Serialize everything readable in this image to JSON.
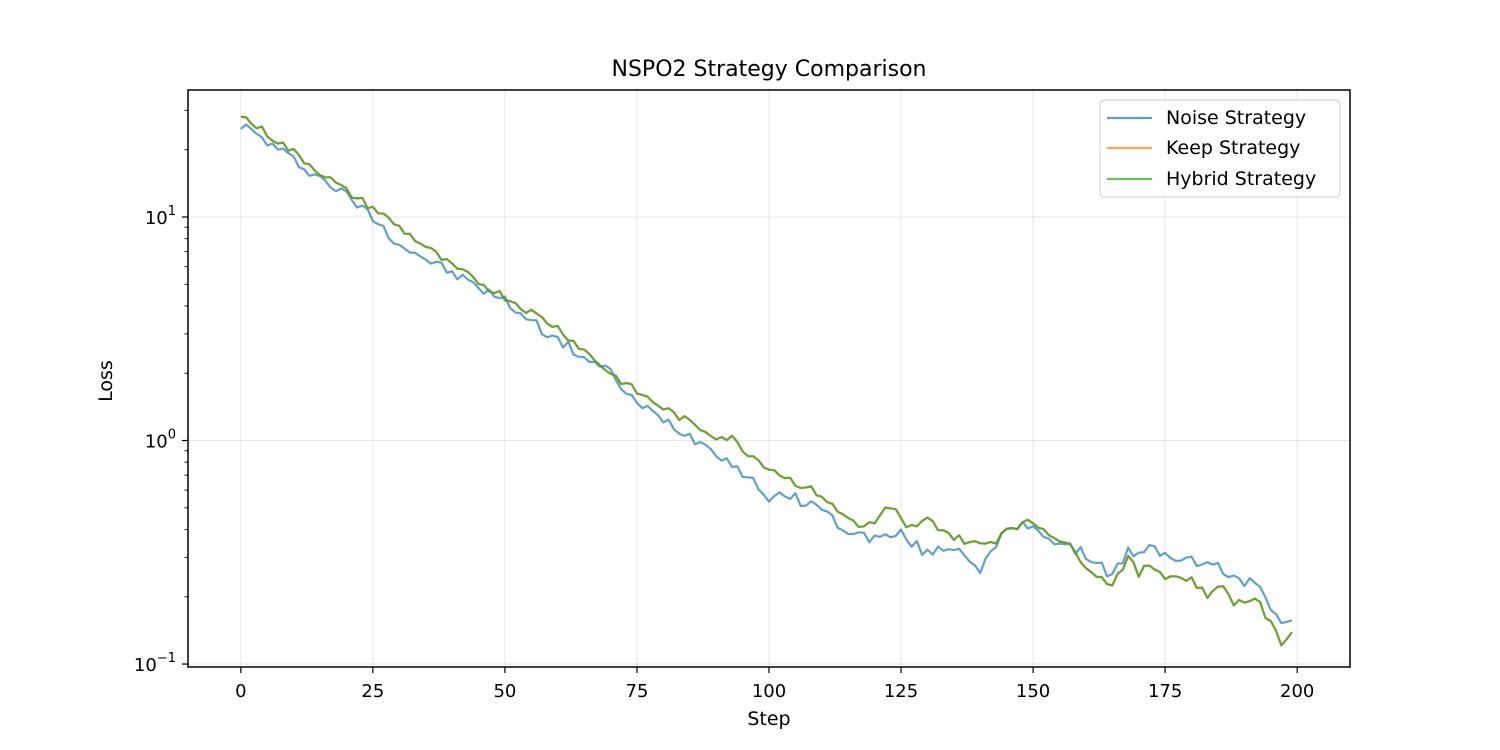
{
  "chart_data": {
    "type": "line",
    "title": "NSPO2 Strategy Comparison",
    "xlabel": "Step",
    "ylabel": "Loss",
    "xlim": [
      -10,
      210
    ],
    "ylim": [
      0.097,
      37
    ],
    "yscale": "log",
    "grid": true,
    "legend_position": "top-right",
    "x_ticks": [
      0,
      25,
      50,
      75,
      100,
      125,
      150,
      175,
      200
    ],
    "x_tick_labels": [
      "0",
      "25",
      "50",
      "75",
      "100",
      "125",
      "150",
      "175",
      "200"
    ],
    "y_ticks": [
      0.1,
      1,
      10
    ],
    "y_tick_labels": [
      {
        "base": "10",
        "exp": "−1"
      },
      {
        "base": "10",
        "exp": "0"
      },
      {
        "base": "10",
        "exp": "1"
      }
    ],
    "x": {
      "start": 0,
      "step": 1,
      "count": 200
    },
    "series": [
      {
        "name": "Noise Strategy",
        "color": "#1f77b4",
        "keypoints": [
          [
            0,
            26.0
          ],
          [
            10,
            18.0
          ],
          [
            20,
            12.5
          ],
          [
            25,
            10.0
          ],
          [
            30,
            7.6
          ],
          [
            40,
            5.6
          ],
          [
            50,
            4.2
          ],
          [
            60,
            2.8
          ],
          [
            70,
            2.0
          ],
          [
            75,
            1.45
          ],
          [
            80,
            1.25
          ],
          [
            85,
            1.05
          ],
          [
            90,
            0.9
          ],
          [
            95,
            0.72
          ],
          [
            100,
            0.56
          ],
          [
            105,
            0.55
          ],
          [
            110,
            0.5
          ],
          [
            113,
            0.42
          ],
          [
            118,
            0.37
          ],
          [
            122,
            0.37
          ],
          [
            125,
            0.38
          ],
          [
            130,
            0.31
          ],
          [
            133,
            0.33
          ],
          [
            135,
            0.34
          ],
          [
            140,
            0.27
          ],
          [
            143,
            0.33
          ],
          [
            145,
            0.4
          ],
          [
            150,
            0.42
          ],
          [
            155,
            0.34
          ],
          [
            160,
            0.31
          ],
          [
            165,
            0.25
          ],
          [
            168,
            0.32
          ],
          [
            170,
            0.3
          ],
          [
            172,
            0.33
          ],
          [
            175,
            0.31
          ],
          [
            180,
            0.29
          ],
          [
            185,
            0.27
          ],
          [
            190,
            0.23
          ],
          [
            193,
            0.23
          ],
          [
            195,
            0.18
          ],
          [
            197,
            0.16
          ],
          [
            199,
            0.16
          ]
        ],
        "noise": 0.025
      },
      {
        "name": "Keep Strategy",
        "color": "#ff7f0e",
        "keypoints": [
          [
            0,
            28.5
          ],
          [
            10,
            19.5
          ],
          [
            20,
            13.0
          ],
          [
            25,
            11.0
          ],
          [
            30,
            9.0
          ],
          [
            40,
            6.0
          ],
          [
            50,
            4.4
          ],
          [
            60,
            3.2
          ],
          [
            70,
            2.0
          ],
          [
            75,
            1.65
          ],
          [
            80,
            1.4
          ],
          [
            85,
            1.2
          ],
          [
            90,
            1.05
          ],
          [
            93,
            1.02
          ],
          [
            95,
            0.92
          ],
          [
            100,
            0.76
          ],
          [
            105,
            0.65
          ],
          [
            110,
            0.57
          ],
          [
            113,
            0.48
          ],
          [
            118,
            0.41
          ],
          [
            120,
            0.43
          ],
          [
            122,
            0.49
          ],
          [
            124,
            0.48
          ],
          [
            126,
            0.4
          ],
          [
            130,
            0.44
          ],
          [
            133,
            0.4
          ],
          [
            135,
            0.37
          ],
          [
            140,
            0.34
          ],
          [
            143,
            0.36
          ],
          [
            145,
            0.41
          ],
          [
            150,
            0.43
          ],
          [
            153,
            0.39
          ],
          [
            156,
            0.35
          ],
          [
            160,
            0.28
          ],
          [
            163,
            0.24
          ],
          [
            165,
            0.23
          ],
          [
            168,
            0.3
          ],
          [
            170,
            0.25
          ],
          [
            172,
            0.28
          ],
          [
            175,
            0.25
          ],
          [
            180,
            0.24
          ],
          [
            183,
            0.2
          ],
          [
            185,
            0.23
          ],
          [
            188,
            0.19
          ],
          [
            190,
            0.19
          ],
          [
            192,
            0.2
          ],
          [
            195,
            0.15
          ],
          [
            197,
            0.125
          ],
          [
            199,
            0.14
          ]
        ],
        "noise": 0.018
      },
      {
        "name": "Hybrid Strategy",
        "color": "#2ca02c",
        "keypoints": [
          [
            0,
            28.5
          ],
          [
            10,
            19.5
          ],
          [
            20,
            13.0
          ],
          [
            25,
            11.0
          ],
          [
            30,
            9.0
          ],
          [
            40,
            6.0
          ],
          [
            50,
            4.4
          ],
          [
            60,
            3.2
          ],
          [
            70,
            2.0
          ],
          [
            75,
            1.65
          ],
          [
            80,
            1.4
          ],
          [
            85,
            1.2
          ],
          [
            90,
            1.05
          ],
          [
            93,
            1.02
          ],
          [
            95,
            0.92
          ],
          [
            100,
            0.76
          ],
          [
            105,
            0.65
          ],
          [
            110,
            0.57
          ],
          [
            113,
            0.48
          ],
          [
            118,
            0.41
          ],
          [
            120,
            0.43
          ],
          [
            122,
            0.49
          ],
          [
            124,
            0.48
          ],
          [
            126,
            0.4
          ],
          [
            130,
            0.44
          ],
          [
            133,
            0.4
          ],
          [
            135,
            0.37
          ],
          [
            140,
            0.34
          ],
          [
            143,
            0.36
          ],
          [
            145,
            0.41
          ],
          [
            150,
            0.43
          ],
          [
            153,
            0.39
          ],
          [
            156,
            0.35
          ],
          [
            160,
            0.28
          ],
          [
            163,
            0.24
          ],
          [
            165,
            0.23
          ],
          [
            168,
            0.3
          ],
          [
            170,
            0.25
          ],
          [
            172,
            0.28
          ],
          [
            175,
            0.25
          ],
          [
            180,
            0.24
          ],
          [
            183,
            0.2
          ],
          [
            185,
            0.23
          ],
          [
            188,
            0.19
          ],
          [
            190,
            0.19
          ],
          [
            192,
            0.2
          ],
          [
            195,
            0.15
          ],
          [
            197,
            0.125
          ],
          [
            199,
            0.14
          ]
        ],
        "noise": 0.018
      }
    ]
  }
}
